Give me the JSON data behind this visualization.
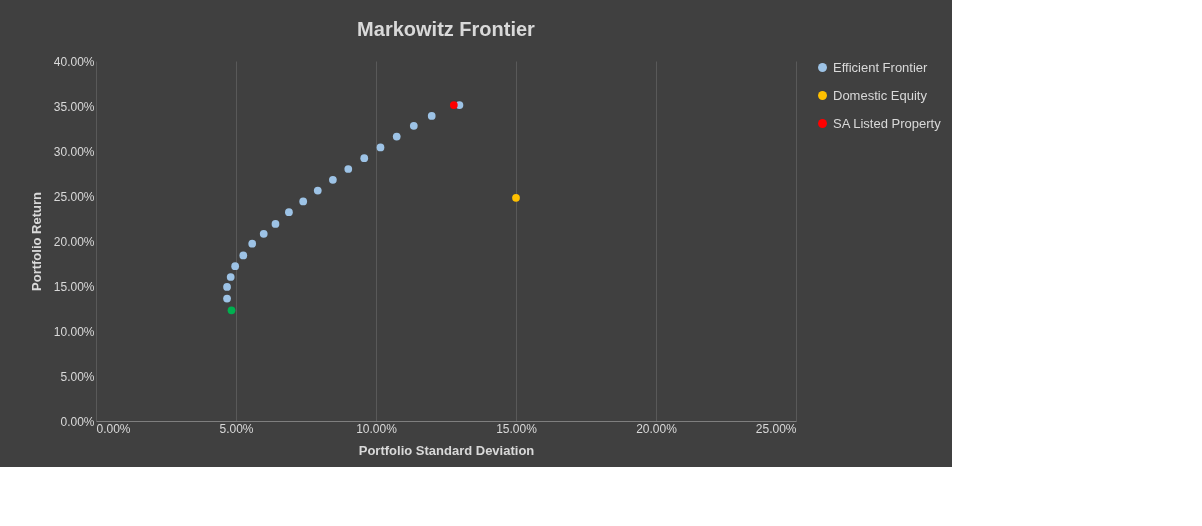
{
  "chart_data": {
    "type": "scatter",
    "title": "Markowitz Frontier",
    "xlabel": "Portfolio Standard Deviation",
    "ylabel": "Portfolio Return",
    "series": [
      {
        "name": "Efficient Frontier",
        "color": "#9dc3e6",
        "x": [
          4.68,
          4.68,
          4.81,
          4.97,
          5.26,
          5.58,
          5.99,
          6.41,
          6.89,
          7.4,
          7.92,
          8.46,
          9.01,
          9.58,
          10.16,
          10.74,
          11.35,
          11.99,
          12.98
        ],
        "values": [
          13.6,
          14.9,
          16.0,
          17.2,
          18.4,
          19.7,
          20.8,
          21.9,
          23.2,
          24.4,
          25.6,
          26.8,
          28.0,
          29.2,
          30.4,
          31.6,
          32.8,
          33.9,
          35.1
        ]
      },
      {
        "name": "Domestic Equity",
        "color": "#ffc000",
        "x": [
          15.0
        ],
        "values": [
          24.8
        ]
      },
      {
        "name": "SA Listed Property",
        "color": "#ff0000",
        "x": [
          12.78
        ],
        "values": [
          35.1
        ]
      },
      {
        "color": "#00b050",
        "x": [
          4.84
        ],
        "values": [
          12.3
        ]
      }
    ],
    "xlim": [
      0,
      25
    ],
    "ylim": [
      0,
      40
    ],
    "xticks": [
      {
        "value": 0,
        "label": "0.00%"
      },
      {
        "value": 5,
        "label": "5.00%"
      },
      {
        "value": 10,
        "label": "10.00%"
      },
      {
        "value": 15,
        "label": "15.00%"
      },
      {
        "value": 20,
        "label": "20.00%"
      },
      {
        "value": 25,
        "label": "25.00%"
      }
    ],
    "yticks": [
      {
        "value": 0,
        "label": "0.00%"
      },
      {
        "value": 5,
        "label": "5.00%"
      },
      {
        "value": 10,
        "label": "10.00%"
      },
      {
        "value": 15,
        "label": "15.00%"
      },
      {
        "value": 20,
        "label": "20.00%"
      },
      {
        "value": 25,
        "label": "25.00%"
      },
      {
        "value": 30,
        "label": "30.00%"
      },
      {
        "value": 35,
        "label": "35.00%"
      },
      {
        "value": 40,
        "label": "40.00%"
      }
    ],
    "grid": "x",
    "legend": "right",
    "marker": "circle"
  }
}
